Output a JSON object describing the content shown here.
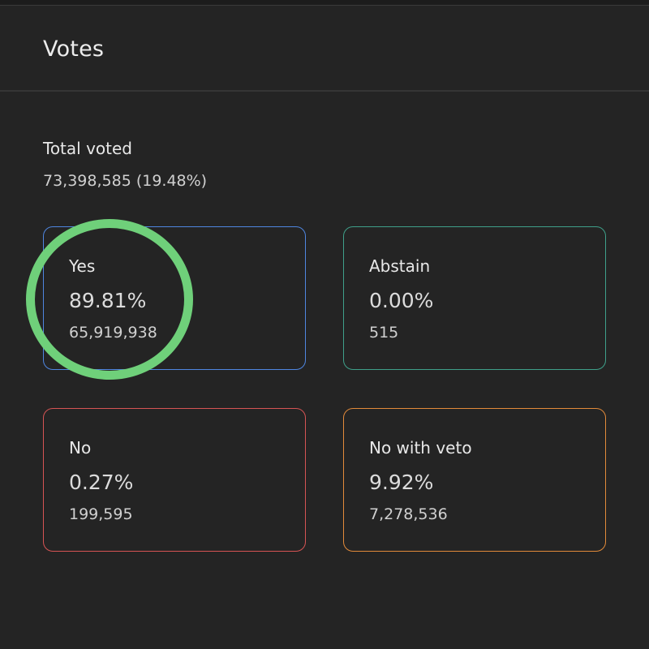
{
  "header": {
    "title": "Votes"
  },
  "summary": {
    "total_label": "Total voted",
    "total_value": "73,398,585 (19.48%)"
  },
  "options": [
    {
      "label": "Yes",
      "percent": "89.81%",
      "count": "65,919,938",
      "color": "#4f86e0"
    },
    {
      "label": "Abstain",
      "percent": "0.00%",
      "count": "515",
      "color": "#3fa08a"
    },
    {
      "label": "No",
      "percent": "0.27%",
      "count": "199,595",
      "color": "#d65454"
    },
    {
      "label": "No with veto",
      "percent": "9.92%",
      "count": "7,278,536",
      "color": "#e28a3a"
    }
  ],
  "annotation": {
    "highlight_color": "#6fd07a"
  }
}
